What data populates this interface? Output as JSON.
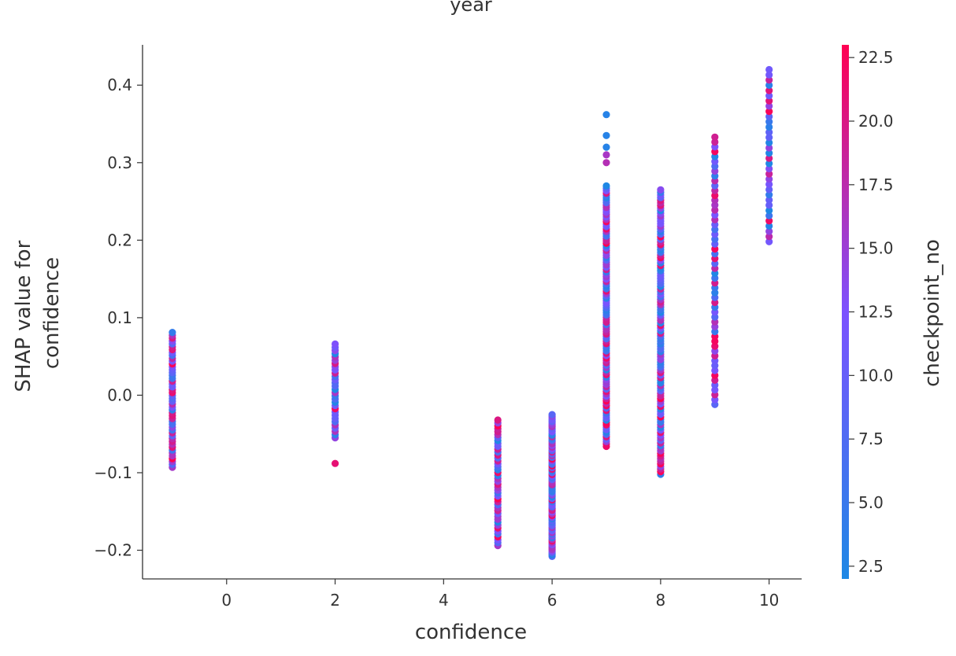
{
  "chart_data": {
    "type": "scatter",
    "title": "year",
    "xlabel": "confidence",
    "ylabel": [
      "SHAP value for",
      "confidence"
    ],
    "xlim": [
      -1.55,
      10.6
    ],
    "ylim": [
      -0.237,
      0.452
    ],
    "xticks": [
      0,
      2,
      4,
      6,
      8,
      10
    ],
    "yticks": [
      -0.2,
      -0.1,
      0.0,
      0.1,
      0.2,
      0.3,
      0.4
    ],
    "ytick_labels": [
      "−0.2",
      "−0.1",
      "0.0",
      "0.1",
      "0.2",
      "0.3",
      "0.4"
    ],
    "colorbar": {
      "label": "checkpoint_no",
      "range": [
        2.0,
        23.0
      ],
      "ticks": [
        2.5,
        5.0,
        7.5,
        10.0,
        12.5,
        15.0,
        17.5,
        20.0,
        22.5
      ],
      "colors": [
        "#1e88e5",
        "#7c52ff",
        "#ff0052"
      ]
    },
    "clusters": [
      {
        "x": -1,
        "ymin": -0.093,
        "ymax": 0.081,
        "n": 48
      },
      {
        "x": 2,
        "ymin": -0.055,
        "ymax": 0.066,
        "n": 30,
        "extra": [
          [
            -0.088,
            21
          ]
        ]
      },
      {
        "x": 5,
        "ymin": -0.194,
        "ymax": -0.032,
        "n": 44
      },
      {
        "x": 6,
        "ymin": -0.208,
        "ymax": -0.025,
        "n": 84
      },
      {
        "x": 7,
        "ymin": -0.066,
        "ymax": 0.27,
        "n": 110,
        "extra": [
          [
            0.362,
            3
          ],
          [
            0.335,
            3
          ],
          [
            0.32,
            3
          ],
          [
            0.31,
            16
          ],
          [
            0.3,
            17
          ]
        ]
      },
      {
        "x": 8,
        "ymin": -0.102,
        "ymax": 0.265,
        "n": 110
      },
      {
        "x": 9,
        "ymin": -0.012,
        "ymax": 0.333,
        "n": 56
      },
      {
        "x": 10,
        "ymin": 0.198,
        "ymax": 0.42,
        "n": 34
      }
    ]
  }
}
